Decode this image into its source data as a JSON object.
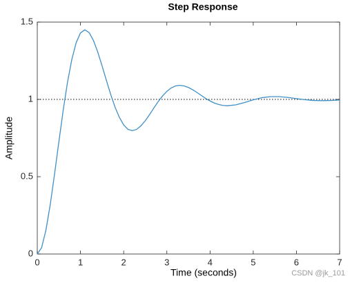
{
  "chart_data": {
    "type": "line",
    "title": "Step Response",
    "x_label": "Time (seconds)",
    "y_label": "Amplitude",
    "watermark": "CSDN @jk_101",
    "xlim": [
      0,
      7
    ],
    "ylim": [
      0,
      1.5
    ],
    "xticks": [
      0,
      1,
      2,
      3,
      4,
      5,
      6,
      7
    ],
    "yticks": [
      0,
      0.5,
      1,
      1.5
    ],
    "reference_line": 1,
    "series": [
      {
        "color": "#3d8fc8",
        "x": [
          0,
          0.1,
          0.2,
          0.3,
          0.4,
          0.5,
          0.6,
          0.7,
          0.8,
          0.9,
          1.0,
          1.1,
          1.2,
          1.3,
          1.4,
          1.5,
          1.6,
          1.7,
          1.8,
          1.9,
          2.0,
          2.1,
          2.2,
          2.3,
          2.4,
          2.5,
          2.6,
          2.7,
          2.8,
          2.9,
          3.0,
          3.1,
          3.2,
          3.3,
          3.4,
          3.5,
          3.6,
          3.7,
          3.8,
          3.9,
          4.0,
          4.1,
          4.2,
          4.3,
          4.4,
          4.6,
          4.8,
          5.0,
          5.2,
          5.4,
          5.5,
          5.6,
          5.8,
          6.0,
          6.2,
          6.4,
          6.6,
          6.8,
          7.0
        ],
        "values": [
          0,
          0.041,
          0.154,
          0.319,
          0.517,
          0.726,
          0.93,
          1.111,
          1.259,
          1.366,
          1.43,
          1.45,
          1.432,
          1.381,
          1.306,
          1.217,
          1.123,
          1.032,
          0.95,
          0.884,
          0.835,
          0.806,
          0.798,
          0.806,
          0.829,
          0.862,
          0.902,
          0.945,
          0.986,
          1.022,
          1.052,
          1.074,
          1.087,
          1.091,
          1.087,
          1.077,
          1.062,
          1.044,
          1.025,
          1.006,
          0.99,
          0.976,
          0.967,
          0.961,
          0.959,
          0.965,
          0.98,
          0.997,
          1.011,
          1.018,
          1.018,
          1.018,
          1.013,
          1.005,
          0.998,
          0.993,
          0.992,
          0.993,
          0.996
        ]
      }
    ]
  }
}
